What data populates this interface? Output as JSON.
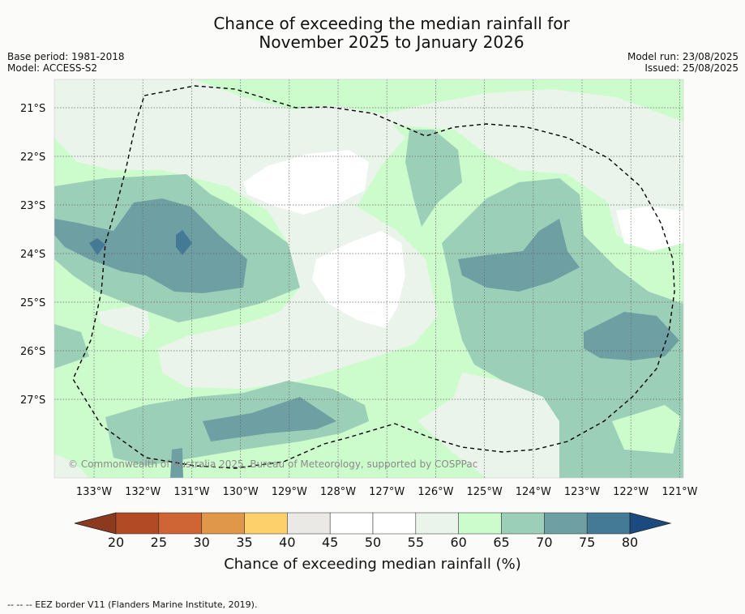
{
  "title_line1": "Chance of exceeding the median rainfall for",
  "title_line2": "November 2025 to January 2026",
  "meta_left": {
    "base_period": "Base period: 1981-2018",
    "model": "Model: ACCESS-S2"
  },
  "meta_right": {
    "model_run": "Model run: 23/08/2025",
    "issued": "Issued: 25/08/2025"
  },
  "lat_labels": [
    "21°S",
    "22°S",
    "23°S",
    "24°S",
    "25°S",
    "26°S",
    "27°S"
  ],
  "lon_labels": [
    "133°W",
    "132°W",
    "131°W",
    "130°W",
    "129°W",
    "128°W",
    "127°W",
    "126°W",
    "125°W",
    "124°W",
    "123°W",
    "122°W",
    "121°W"
  ],
  "copyright": "© Commonwealth of Australia 2025, Bureau of Meteorology, supported by COSPPac",
  "colorbar": {
    "labels": [
      "20",
      "25",
      "30",
      "35",
      "40",
      "45",
      "50",
      "55",
      "60",
      "65",
      "70",
      "75",
      "80"
    ],
    "colors": [
      "#8b3a1f",
      "#b24b25",
      "#cf6535",
      "#e0974a",
      "#fdd06c",
      "#ebe9e6",
      "#ffffff",
      "#ffffff",
      "#eaf4ea",
      "#ccfccc",
      "#9ccfb8",
      "#6e9fa3",
      "#457a96",
      "#1a4a80"
    ],
    "title": "Chance of exceeding median rainfall (%)"
  },
  "footnote": "--  --  -- EEZ border V11 (Flanders Marine Institute, 2019)."
}
